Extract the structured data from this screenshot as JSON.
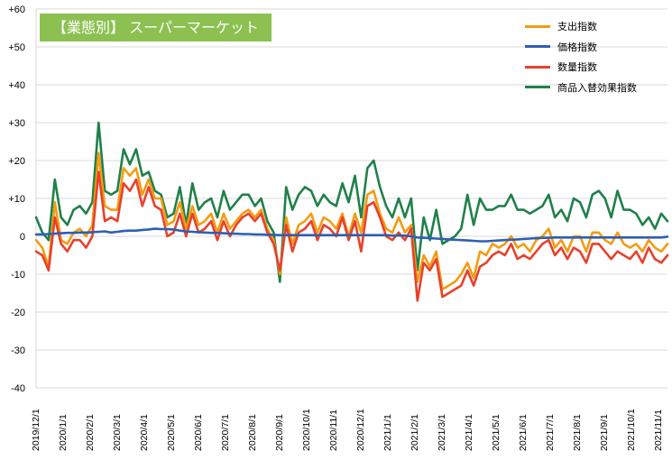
{
  "chart_data": {
    "type": "line",
    "title": "【業態別】 スーパーマーケット",
    "xlabel": "",
    "ylabel": "",
    "ylim": [
      -40,
      60
    ],
    "y_ticks": [
      "+60",
      "+50",
      "+40",
      "+30",
      "+20",
      "+10",
      "0",
      "-10",
      "-20",
      "-30",
      "-40"
    ],
    "x_tick_labels": [
      "2019/12/1",
      "2020/1/1",
      "2020/2/1",
      "2020/3/1",
      "2020/4/1",
      "2020/5/1",
      "2020/6/1",
      "2020/7/1",
      "2020/8/1",
      "2020/9/1",
      "2020/10/1",
      "2020/11/1",
      "2020/12/1",
      "2021/1/1",
      "2021/2/1",
      "2021/3/1",
      "2021/4/1",
      "2021/5/1",
      "2021/6/1",
      "2021/7/1",
      "2021/8/1",
      "2021/9/1",
      "2021/10/1",
      "2021/11/1"
    ],
    "grid": "horizontal",
    "legend_position": "top-right",
    "series": [
      {
        "name": "支出指数",
        "color": "#f39c12",
        "values": [
          -1,
          -3,
          -8,
          9,
          -1,
          -2,
          1,
          2,
          0,
          3,
          22,
          8,
          7,
          7,
          18,
          16,
          18,
          11,
          15,
          10,
          10,
          3,
          4,
          9,
          2,
          8,
          3,
          4,
          6,
          1,
          6,
          2,
          4,
          6,
          7,
          5,
          7,
          2,
          -1,
          -10,
          5,
          -2,
          3,
          4,
          6,
          1,
          5,
          4,
          2,
          6,
          0,
          6,
          1,
          11,
          12,
          6,
          2,
          1,
          5,
          1,
          3,
          -12,
          -5,
          -8,
          -4,
          -14,
          -13,
          -12,
          -10,
          -7,
          -11,
          -4,
          -5,
          -2,
          -3,
          -2,
          0,
          -3,
          -2,
          -4,
          -1,
          0,
          2,
          -3,
          -1,
          -4,
          0,
          0,
          -4,
          1,
          1,
          -1,
          -2,
          1,
          -2,
          -3,
          -2,
          -4,
          -1,
          -3,
          -4,
          -2
        ]
      },
      {
        "name": "価格指数",
        "color": "#2e5fb4",
        "values": [
          0.5,
          0.5,
          0.6,
          0.7,
          0.8,
          0.9,
          0.9,
          1.0,
          1.0,
          1.1,
          1.2,
          1.3,
          1.0,
          1.2,
          1.4,
          1.5,
          1.5,
          1.7,
          1.8,
          2.0,
          1.9,
          1.9,
          1.8,
          1.5,
          1.3,
          1.2,
          1.1,
          1.0,
          0.9,
          0.9,
          0.8,
          0.7,
          0.7,
          0.6,
          0.6,
          0.5,
          0.5,
          0.4,
          0.4,
          0.3,
          0.3,
          0.3,
          0.3,
          0.3,
          0.3,
          0.3,
          0.3,
          0.3,
          0.3,
          0.3,
          0.3,
          0.3,
          0.3,
          0.3,
          0.3,
          0.3,
          0.3,
          0.2,
          0.2,
          0.2,
          0.0,
          -0.3,
          -0.4,
          -0.5,
          -0.6,
          -0.7,
          -0.8,
          -0.9,
          -1.0,
          -1.1,
          -1.2,
          -1.3,
          -1.3,
          -1.2,
          -1.1,
          -1.0,
          -0.9,
          -0.8,
          -0.7,
          -0.6,
          -0.5,
          -0.4,
          -0.4,
          -0.3,
          -0.3,
          -0.3,
          -0.3,
          -0.3,
          -0.3,
          -0.3,
          -0.3,
          -0.3,
          -0.3,
          -0.3,
          -0.3,
          -0.3,
          -0.3,
          -0.3,
          -0.3,
          -0.3,
          -0.3,
          -0.1
        ]
      },
      {
        "name": "数量指数",
        "color": "#e8412c",
        "values": [
          -4,
          -5,
          -9,
          5,
          -2,
          -4,
          -1,
          -1,
          -3,
          0,
          17,
          4,
          5,
          4,
          14,
          12,
          15,
          8,
          13,
          8,
          7,
          0,
          1,
          6,
          0,
          6,
          1,
          2,
          4,
          -1,
          4,
          0,
          3,
          5,
          6,
          4,
          6,
          1,
          -2,
          -9,
          3,
          -4,
          1,
          2,
          4,
          -1,
          3,
          2,
          0,
          5,
          -1,
          4,
          -4,
          8,
          9,
          5,
          0,
          -1,
          1,
          -1,
          2,
          -17,
          -7,
          -9,
          -6,
          -16,
          -15,
          -14,
          -13,
          -9,
          -13,
          -8,
          -7,
          -5,
          -4,
          -5,
          -2,
          -6,
          -5,
          -6,
          -4,
          -2,
          -1,
          -5,
          -3,
          -6,
          -3,
          -4,
          -7,
          -2,
          -2,
          -4,
          -6,
          -4,
          -5,
          -6,
          -4,
          -7,
          -3,
          -6,
          -7,
          -5
        ]
      },
      {
        "name": "商品入替効果指数",
        "color": "#21804a",
        "values": [
          5,
          1,
          -1,
          15,
          5,
          3,
          7,
          8,
          6,
          9,
          30,
          12,
          11,
          12,
          23,
          19,
          23,
          16,
          17,
          12,
          11,
          5,
          6,
          13,
          3,
          14,
          7,
          9,
          10,
          5,
          12,
          7,
          9,
          11,
          11,
          8,
          10,
          4,
          1,
          -12,
          13,
          7,
          11,
          13,
          12,
          8,
          11,
          9,
          8,
          14,
          9,
          16,
          5,
          18,
          20,
          13,
          8,
          5,
          10,
          5,
          10,
          -9,
          5,
          -1,
          7,
          -2,
          -1,
          0,
          2,
          11,
          3,
          10,
          7,
          7,
          8,
          8,
          11,
          7,
          7,
          6,
          7,
          8,
          11,
          5,
          7,
          4,
          10,
          9,
          5,
          11,
          12,
          10,
          5,
          12,
          7,
          7,
          6,
          3,
          5,
          2,
          6,
          4
        ]
      }
    ]
  }
}
